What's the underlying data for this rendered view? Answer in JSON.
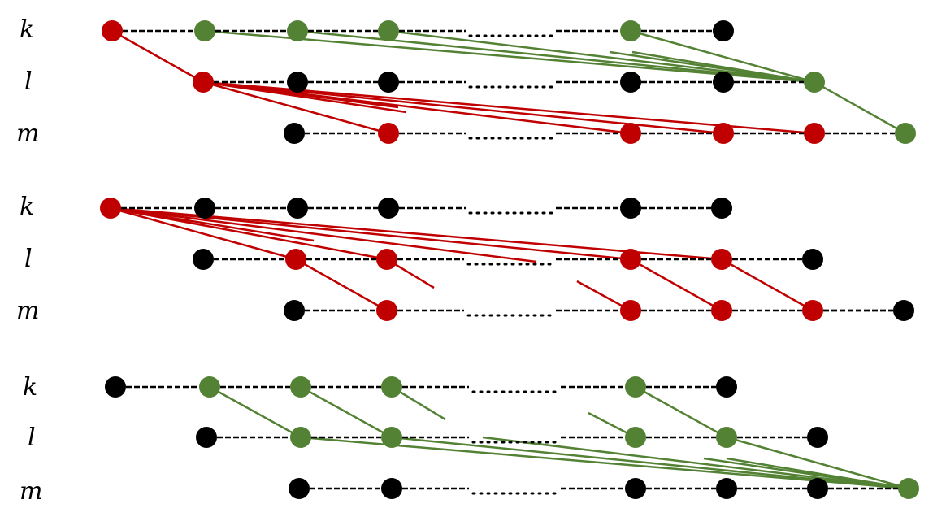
{
  "colors": {
    "red": "#c00000",
    "green": "#548235",
    "black": "#000000"
  },
  "panels": [
    {
      "id": "panel-1",
      "labels": [
        {
          "row": "k",
          "text": "k"
        },
        {
          "row": "l",
          "text": "l"
        },
        {
          "row": "m",
          "text": "m"
        }
      ],
      "nodes": {
        "k": [
          "red",
          "green",
          "green",
          "green",
          "gap",
          "green",
          "black"
        ],
        "l": [
          "red",
          "black",
          "black",
          "gap",
          "black",
          "black",
          "green"
        ],
        "m": [
          "black",
          "red",
          "gap",
          "red",
          "red",
          "red",
          "green"
        ]
      }
    },
    {
      "id": "panel-2",
      "labels": [
        {
          "row": "k",
          "text": "k"
        },
        {
          "row": "l",
          "text": "l"
        },
        {
          "row": "m",
          "text": "m"
        }
      ],
      "nodes": {
        "k": [
          "red",
          "black",
          "black",
          "black",
          "gap",
          "black",
          "black"
        ],
        "l": [
          "black",
          "red",
          "red",
          "gap",
          "red",
          "red",
          "black"
        ],
        "m": [
          "black",
          "red",
          "gap",
          "red",
          "red",
          "red",
          "black"
        ]
      }
    },
    {
      "id": "panel-3",
      "labels": [
        {
          "row": "k",
          "text": "k"
        },
        {
          "row": "l",
          "text": "l"
        },
        {
          "row": "m",
          "text": "m"
        }
      ],
      "nodes": {
        "k": [
          "black",
          "green",
          "green",
          "green",
          "gap",
          "green",
          "black"
        ],
        "l": [
          "black",
          "green",
          "green",
          "gap",
          "green",
          "green",
          "black"
        ],
        "m": [
          "black",
          "black",
          "gap",
          "black",
          "black",
          "black",
          "green"
        ]
      }
    }
  ]
}
